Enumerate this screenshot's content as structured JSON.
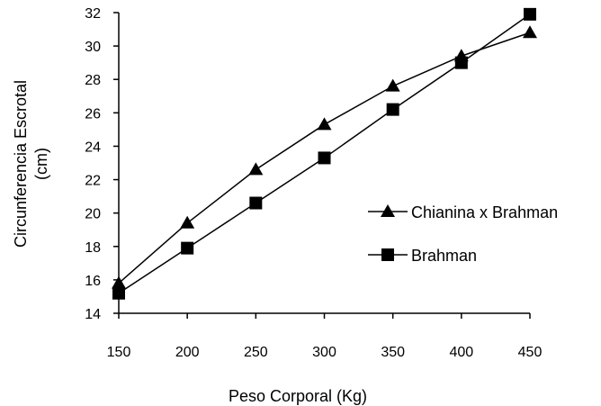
{
  "chart_data": {
    "type": "line",
    "title": "",
    "xlabel": "Peso Corporal (Kg)",
    "ylabel_lines": [
      "Circunferencia Escrotal",
      "(cm)"
    ],
    "x": [
      150,
      200,
      250,
      300,
      350,
      400,
      450
    ],
    "xlim": [
      150,
      450
    ],
    "ylim": [
      14,
      32
    ],
    "x_ticks": [
      "150",
      "200",
      "250",
      "300",
      "350",
      "400",
      "450"
    ],
    "y_ticks": [
      "14",
      "16",
      "18",
      "20",
      "22",
      "24",
      "26",
      "28",
      "30",
      "32"
    ],
    "grid": false,
    "legend_position": "right",
    "series": [
      {
        "name": "Chianina x Brahman",
        "marker": "triangle",
        "values": [
          15.8,
          19.4,
          22.6,
          25.3,
          27.6,
          29.4,
          30.8
        ]
      },
      {
        "name": "Brahman",
        "marker": "square",
        "values": [
          15.2,
          17.9,
          20.6,
          23.3,
          26.2,
          29.0,
          31.9
        ]
      }
    ],
    "colors": {
      "line": "#000000",
      "background": "#ffffff"
    }
  }
}
